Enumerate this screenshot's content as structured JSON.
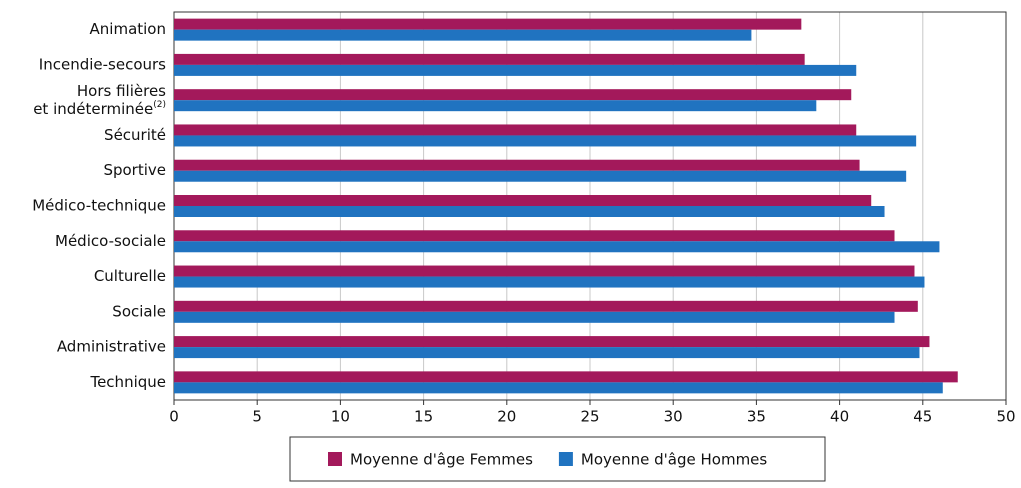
{
  "chart_data": {
    "type": "hbar",
    "categories": [
      "Animation",
      "Incendie-secours",
      "Hors filières et indéterminée(2)",
      "Sécurité",
      "Sportive",
      "Médico-technique",
      "Médico-sociale",
      "Culturelle",
      "Sociale",
      "Administrative",
      "Technique"
    ],
    "series": [
      {
        "name": "Moyenne d'âge Femmes",
        "color": "#a3195b",
        "values": [
          37.7,
          37.9,
          40.7,
          41.0,
          41.2,
          41.9,
          43.3,
          44.5,
          44.7,
          45.4,
          47.1
        ]
      },
      {
        "name": "Moyenne d'âge Hommes",
        "color": "#2073c0",
        "values": [
          34.7,
          41.0,
          38.6,
          44.6,
          44.0,
          42.7,
          46.0,
          45.1,
          43.3,
          44.8,
          46.2
        ]
      }
    ],
    "xlim": [
      0,
      50
    ],
    "xticks": [
      0,
      5,
      10,
      15,
      20,
      25,
      30,
      35,
      40,
      45,
      50
    ],
    "grid": true,
    "legend": "bottom"
  }
}
